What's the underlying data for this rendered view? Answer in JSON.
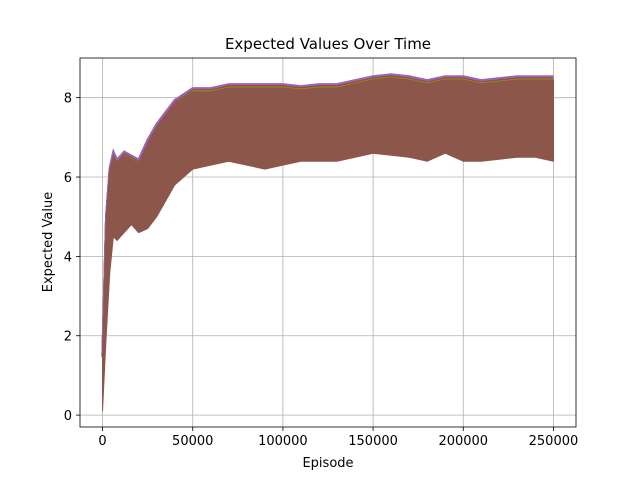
{
  "chart_data": {
    "type": "line",
    "title": "Expected Values Over Time",
    "xlabel": "Episode",
    "ylabel": "Expected Value",
    "xlim": [
      -12500,
      262500
    ],
    "ylim": [
      -0.3,
      9.0
    ],
    "grid": true,
    "xticks": [
      0,
      50000,
      100000,
      150000,
      200000,
      250000
    ],
    "yticks": [
      0,
      2,
      4,
      6,
      8
    ],
    "xtick_labels": [
      "0",
      "50000",
      "100000",
      "150000",
      "200000",
      "250000"
    ],
    "ytick_labels": [
      "0",
      "2",
      "4",
      "6",
      "8"
    ],
    "band": {
      "x": [
        0,
        2000,
        4000,
        6000,
        8000,
        12000,
        16000,
        20000,
        25000,
        30000,
        40000,
        50000,
        60000,
        70000,
        80000,
        90000,
        100000,
        110000,
        120000,
        130000,
        140000,
        150000,
        160000,
        170000,
        180000,
        190000,
        200000,
        210000,
        220000,
        230000,
        240000,
        250000
      ],
      "upper": [
        1.5,
        5.0,
        6.2,
        6.6,
        6.4,
        6.6,
        6.5,
        6.4,
        6.9,
        7.3,
        7.9,
        8.2,
        8.2,
        8.3,
        8.3,
        8.3,
        8.3,
        8.25,
        8.3,
        8.3,
        8.4,
        8.5,
        8.55,
        8.5,
        8.4,
        8.5,
        8.5,
        8.4,
        8.45,
        8.5,
        8.5,
        8.5
      ],
      "lower": [
        0.1,
        2.0,
        3.6,
        4.5,
        4.4,
        4.6,
        4.8,
        4.6,
        4.7,
        5.0,
        5.8,
        6.2,
        6.3,
        6.4,
        6.3,
        6.2,
        6.3,
        6.4,
        6.4,
        6.4,
        6.5,
        6.6,
        6.55,
        6.5,
        6.4,
        6.6,
        6.4,
        6.4,
        6.45,
        6.5,
        6.5,
        6.4
      ]
    },
    "band_color": "#8c564b",
    "series_colors": [
      "#1f77b4",
      "#ff7f0e",
      "#2ca02c",
      "#d62728",
      "#9467bd",
      "#8c564b"
    ]
  }
}
